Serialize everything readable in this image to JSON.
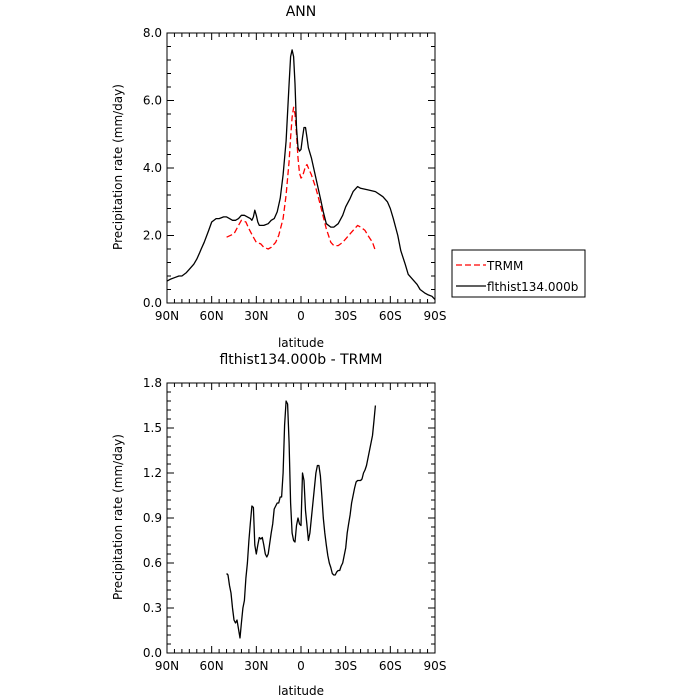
{
  "legend": {
    "items": [
      {
        "label": "TRMM",
        "color": "#ff0000",
        "dash": true
      },
      {
        "label": "flthist134.000b",
        "color": "#000000",
        "dash": false
      }
    ]
  },
  "chart_data": [
    {
      "type": "line",
      "title": "ANN",
      "xlabel": "latitude",
      "ylabel": "Precipitation rate (mm/day)",
      "xlim": [
        90,
        -90
      ],
      "ylim": [
        0,
        8
      ],
      "x_ticks": [
        90,
        60,
        30,
        0,
        -30,
        -60,
        -90
      ],
      "x_tick_labels": [
        "90N",
        "60N",
        "30N",
        "0",
        "30S",
        "60S",
        "90S"
      ],
      "y_ticks": [
        0,
        2,
        4,
        6,
        8
      ],
      "y_tick_labels": [
        "0.0",
        "2.0",
        "4.0",
        "6.0",
        "8.0"
      ],
      "grid": false,
      "legend_position": "right",
      "series": [
        {
          "name": "TRMM",
          "color": "#ff0000",
          "dash": true,
          "x": [
            50,
            45,
            42,
            40,
            37,
            35,
            32,
            30,
            27,
            25,
            22,
            20,
            17,
            15,
            12,
            10,
            8,
            7,
            6,
            5,
            4,
            3,
            2,
            1,
            0,
            -1,
            -2,
            -3,
            -4,
            -5,
            -7,
            -10,
            -13,
            -15,
            -17,
            -20,
            -22,
            -25,
            -28,
            -30,
            -33,
            -35,
            -38,
            -40,
            -43,
            -45,
            -48,
            -50
          ],
          "y": [
            1.95,
            2.05,
            2.3,
            2.45,
            2.4,
            2.2,
            1.95,
            1.8,
            1.75,
            1.65,
            1.6,
            1.65,
            1.8,
            2.0,
            2.5,
            3.2,
            4.2,
            4.9,
            5.5,
            5.8,
            5.6,
            5.0,
            4.3,
            3.85,
            3.7,
            3.75,
            3.9,
            4.05,
            4.1,
            4.0,
            3.8,
            3.4,
            2.9,
            2.55,
            2.2,
            1.8,
            1.7,
            1.7,
            1.8,
            1.9,
            2.05,
            2.15,
            2.3,
            2.25,
            2.15,
            2.0,
            1.8,
            1.55
          ]
        },
        {
          "name": "flthist134.000b",
          "color": "#000000",
          "dash": false,
          "x": [
            90,
            88,
            85,
            82,
            80,
            77,
            75,
            72,
            70,
            68,
            67,
            65,
            62,
            60,
            57,
            55,
            52,
            50,
            48,
            46,
            44,
            42,
            40,
            38,
            36,
            34,
            33,
            32,
            31,
            30,
            29,
            28,
            27,
            25,
            22,
            20,
            18,
            16,
            14,
            12,
            10,
            8,
            7,
            6,
            5,
            4,
            3,
            2,
            1,
            0,
            -1,
            -2,
            -3,
            -4,
            -5,
            -7,
            -10,
            -13,
            -15,
            -17,
            -20,
            -22,
            -25,
            -28,
            -30,
            -33,
            -35,
            -38,
            -40,
            -45,
            -50,
            -55,
            -58,
            -60,
            -62,
            -65,
            -67,
            -70,
            -72,
            -75,
            -78,
            -80,
            -83,
            -85,
            -88,
            -90
          ],
          "y": [
            0.65,
            0.7,
            0.75,
            0.8,
            0.8,
            0.9,
            1.0,
            1.15,
            1.3,
            1.5,
            1.6,
            1.8,
            2.15,
            2.4,
            2.5,
            2.5,
            2.55,
            2.55,
            2.5,
            2.45,
            2.45,
            2.5,
            2.6,
            2.6,
            2.55,
            2.5,
            2.45,
            2.55,
            2.75,
            2.6,
            2.4,
            2.3,
            2.3,
            2.3,
            2.35,
            2.45,
            2.5,
            2.7,
            3.1,
            3.8,
            4.8,
            6.5,
            7.3,
            7.5,
            7.3,
            6.5,
            5.2,
            4.6,
            4.5,
            4.55,
            4.9,
            5.2,
            5.2,
            4.9,
            4.6,
            4.3,
            3.7,
            3.1,
            2.7,
            2.35,
            2.25,
            2.25,
            2.35,
            2.6,
            2.85,
            3.1,
            3.3,
            3.45,
            3.4,
            3.35,
            3.3,
            3.15,
            3.0,
            2.8,
            2.5,
            2.0,
            1.55,
            1.15,
            0.85,
            0.7,
            0.55,
            0.4,
            0.3,
            0.25,
            0.2,
            0.1
          ]
        }
      ]
    },
    {
      "type": "line",
      "title": "flthist134.000b - TRMM",
      "xlabel": "latitude",
      "ylabel": "Precipitation rate (mm/day)",
      "xlim": [
        90,
        -90
      ],
      "ylim": [
        0,
        1.8
      ],
      "x_ticks": [
        90,
        60,
        30,
        0,
        -30,
        -60,
        -90
      ],
      "x_tick_labels": [
        "90N",
        "60N",
        "30N",
        "0",
        "30S",
        "60S",
        "90S"
      ],
      "y_ticks": [
        0,
        0.3,
        0.6,
        0.9,
        1.2,
        1.5,
        1.8
      ],
      "y_tick_labels": [
        "0.0",
        "0.3",
        "0.6",
        "0.9",
        "1.2",
        "1.5",
        "1.8"
      ],
      "grid": false,
      "series": [
        {
          "color": "#000000",
          "dash": false,
          "x": [
            50,
            49,
            48,
            47,
            46,
            45,
            44,
            43,
            42,
            41,
            40,
            39,
            38,
            37,
            36,
            35,
            34,
            33,
            32,
            31,
            30,
            29,
            28,
            27,
            26,
            25,
            24,
            23,
            22,
            21,
            20,
            19,
            18,
            17,
            16,
            15,
            14,
            13,
            12,
            11,
            10,
            9,
            8,
            7,
            6,
            5,
            4,
            3,
            2,
            1,
            0,
            -1,
            -2,
            -3,
            -4,
            -5,
            -6,
            -7,
            -8,
            -9,
            -10,
            -11,
            -12,
            -13,
            -14,
            -15,
            -16,
            -17,
            -18,
            -19,
            -20,
            -21,
            -22,
            -23,
            -24,
            -25,
            -26,
            -27,
            -28,
            -29,
            -30,
            -31,
            -32,
            -33,
            -34,
            -35,
            -36,
            -37,
            -38,
            -39,
            -40,
            -41,
            -42,
            -43,
            -44,
            -45,
            -46,
            -47,
            -48,
            -49,
            -50
          ],
          "y": [
            0.53,
            0.52,
            0.45,
            0.4,
            0.3,
            0.22,
            0.2,
            0.22,
            0.16,
            0.1,
            0.2,
            0.3,
            0.35,
            0.5,
            0.6,
            0.75,
            0.87,
            0.98,
            0.97,
            0.72,
            0.66,
            0.72,
            0.77,
            0.76,
            0.77,
            0.72,
            0.66,
            0.64,
            0.66,
            0.73,
            0.8,
            0.86,
            0.96,
            0.98,
            1.0,
            1.0,
            1.04,
            1.04,
            1.2,
            1.52,
            1.68,
            1.66,
            1.4,
            1.0,
            0.8,
            0.75,
            0.74,
            0.85,
            0.9,
            0.86,
            0.85,
            1.2,
            1.15,
            0.95,
            0.85,
            0.75,
            0.8,
            0.9,
            1.0,
            1.1,
            1.2,
            1.25,
            1.25,
            1.18,
            1.05,
            0.9,
            0.8,
            0.72,
            0.65,
            0.6,
            0.57,
            0.53,
            0.52,
            0.52,
            0.54,
            0.55,
            0.55,
            0.58,
            0.6,
            0.65,
            0.7,
            0.8,
            0.86,
            0.92,
            1.0,
            1.05,
            1.1,
            1.14,
            1.15,
            1.15,
            1.15,
            1.16,
            1.2,
            1.22,
            1.25,
            1.3,
            1.35,
            1.4,
            1.45,
            1.55,
            1.65
          ]
        }
      ]
    }
  ]
}
